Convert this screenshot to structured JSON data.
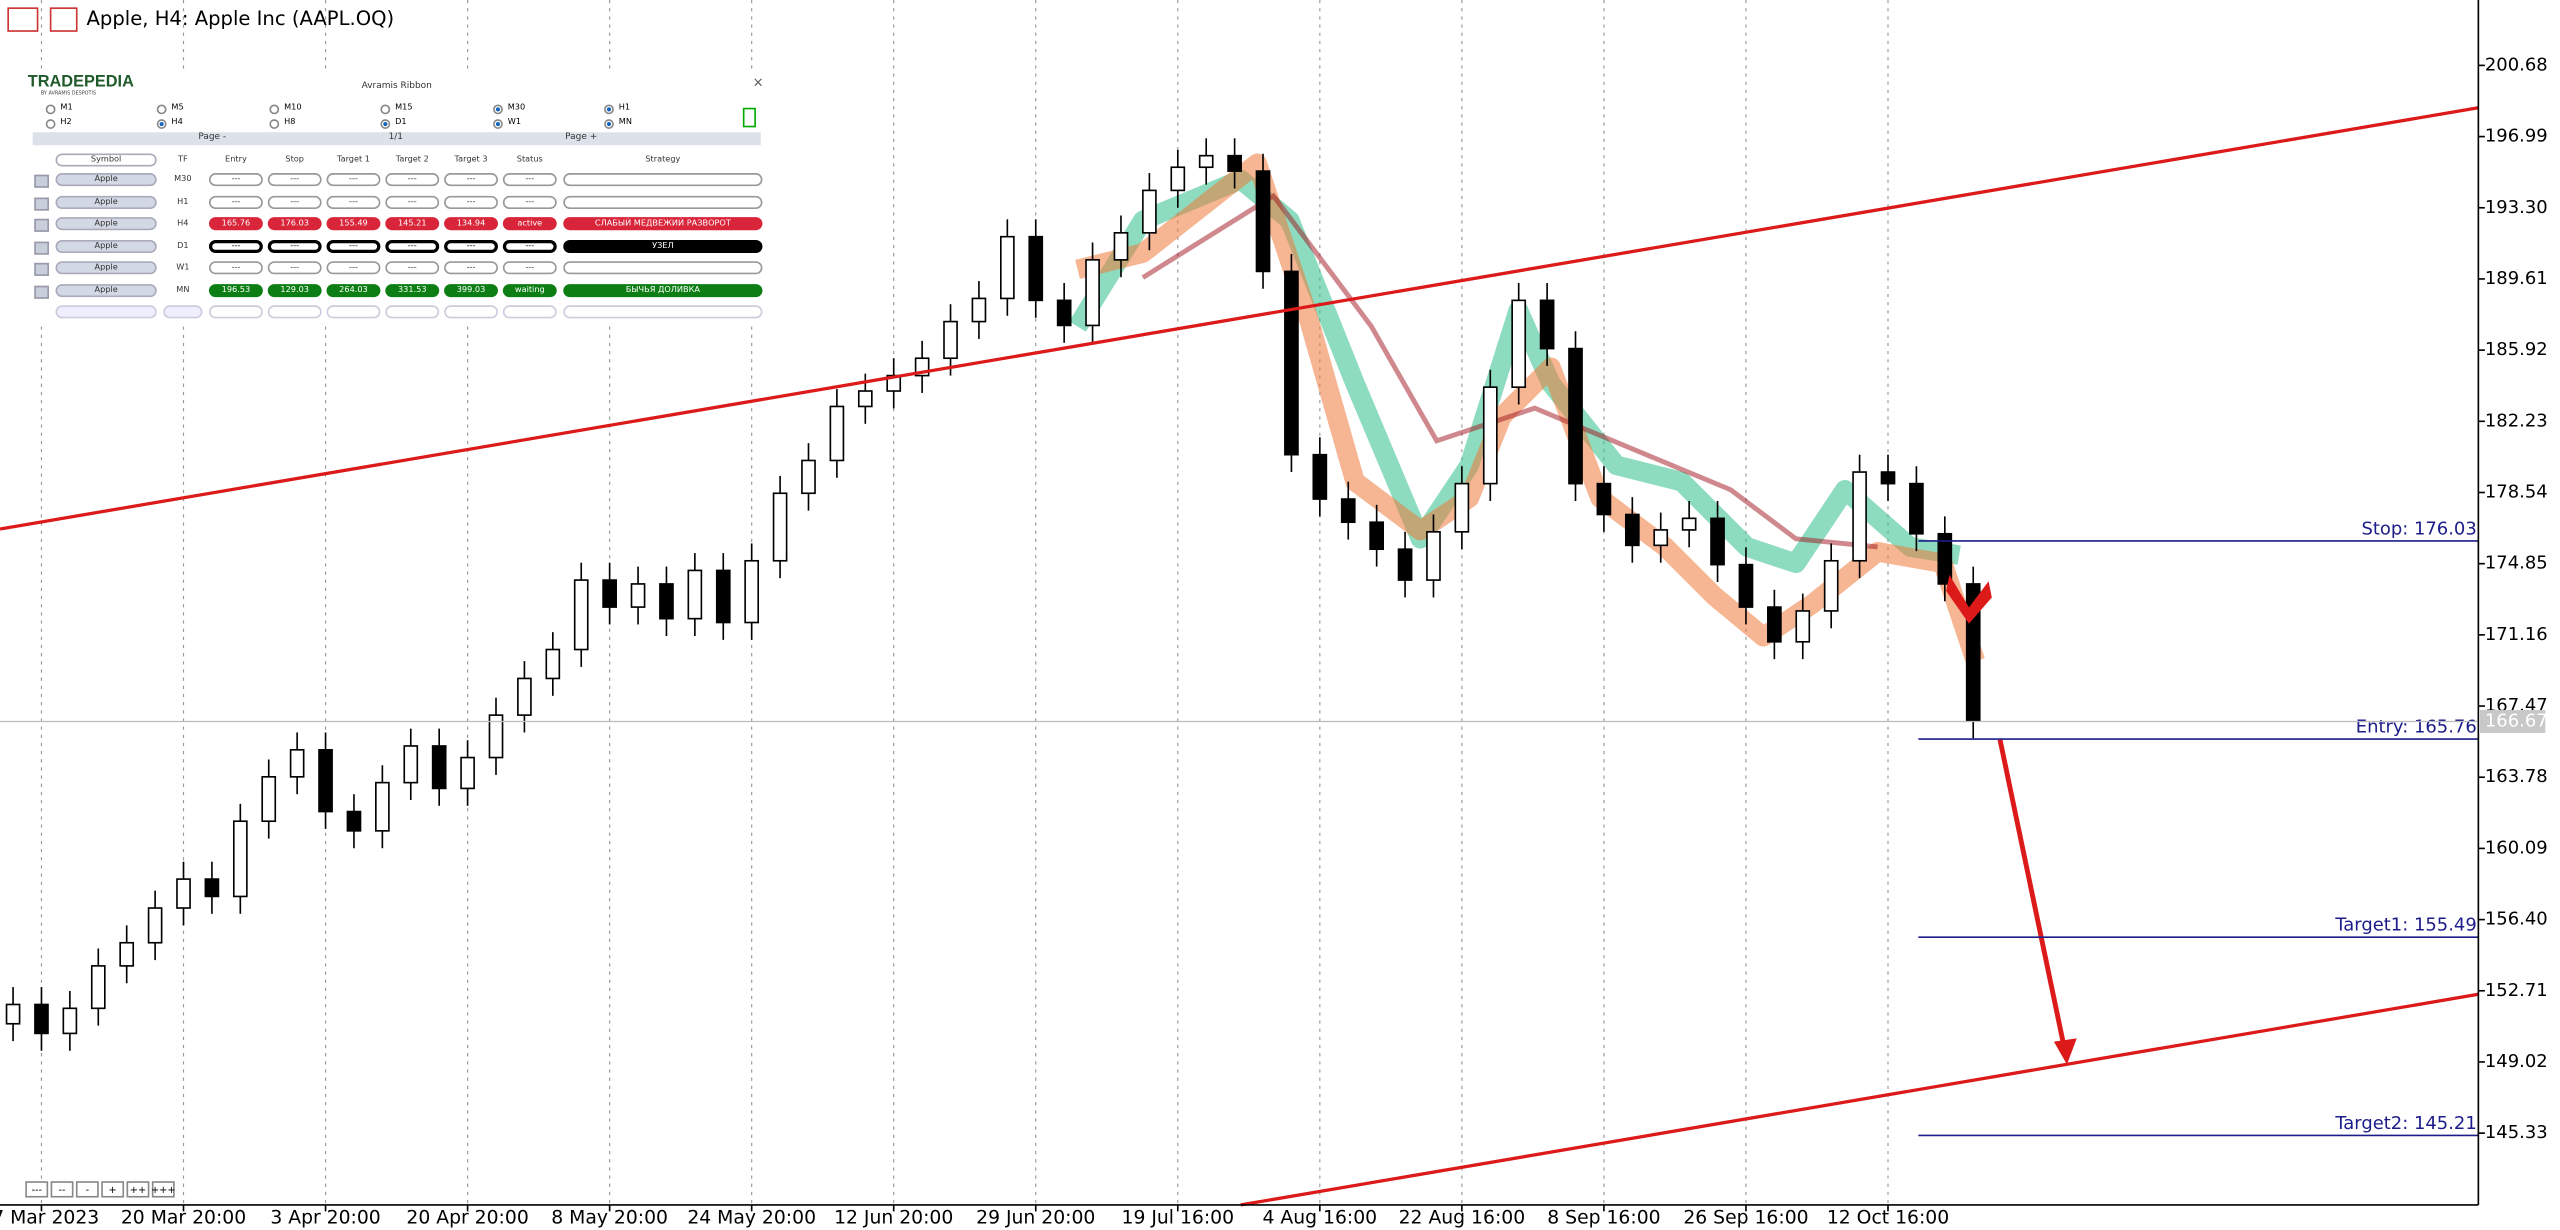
{
  "window": {
    "title": "Apple, H4:  Apple Inc (AAPL.OQ)"
  },
  "panel": {
    "brand": "TRADEPEDIA",
    "brand_sub": "BY AVRAMIS DESPOTIS",
    "title": "Avramis Ribbon",
    "close": "×",
    "timeframes": [
      {
        "label": "M1",
        "checked": false
      },
      {
        "label": "M5",
        "checked": false
      },
      {
        "label": "M10",
        "checked": false
      },
      {
        "label": "M15",
        "checked": false
      },
      {
        "label": "M30",
        "checked": true
      },
      {
        "label": "H1",
        "checked": true
      },
      {
        "label": "H2",
        "checked": false
      },
      {
        "label": "H4",
        "checked": true
      },
      {
        "label": "H8",
        "checked": false
      },
      {
        "label": "D1",
        "checked": true
      },
      {
        "label": "W1",
        "checked": true
      },
      {
        "label": "MN",
        "checked": true
      }
    ],
    "pager": {
      "prev": "Page -",
      "page": "1/1",
      "next": "Page +"
    },
    "columns": [
      "Symbol",
      "TF",
      "Entry",
      "Stop",
      "Target 1",
      "Target 2",
      "Target 3",
      "Status",
      "Strategy"
    ],
    "rows": [
      {
        "style": "plain",
        "cells": [
          "Apple",
          "M30",
          "---",
          "---",
          "---",
          "---",
          "---",
          "---",
          null
        ]
      },
      {
        "style": "plain",
        "cells": [
          "Apple",
          "H1",
          "---",
          "---",
          "---",
          "---",
          "---",
          "---",
          null
        ]
      },
      {
        "style": "red",
        "cells": [
          "Apple",
          "H4",
          "165.76",
          "176.03",
          "155.49",
          "145.21",
          "134.94",
          "active",
          "СЛАБЫЙ МЕДВЕЖИЙ РАЗВОРОТ"
        ]
      },
      {
        "style": "black",
        "cells": [
          "Apple",
          "D1",
          "---",
          "---",
          "---",
          "---",
          "---",
          "---",
          "УЗЕЛ"
        ]
      },
      {
        "style": "plain",
        "cells": [
          "Apple",
          "W1",
          "---",
          "---",
          "---",
          "---",
          "---",
          "---",
          null
        ]
      },
      {
        "style": "green",
        "cells": [
          "Apple",
          "MN",
          "196.53",
          "129.03",
          "264.03",
          "331.53",
          "399.03",
          "waiting",
          "БЫЧЬЯ ДОЛИВКА"
        ]
      }
    ]
  },
  "zoom_buttons": [
    "---",
    "--",
    "-",
    "+",
    "++",
    "+++"
  ],
  "chart_data": {
    "type": "candlestick",
    "categories": [
      null,
      "7 Mar 2023",
      null,
      null,
      null,
      null,
      "20 Mar 20:00",
      null,
      null,
      null,
      null,
      "3 Apr 20:00",
      null,
      null,
      null,
      null,
      "20 Apr 20:00",
      null,
      null,
      null,
      null,
      "8 May 20:00",
      null,
      null,
      null,
      null,
      "24 May 20:00",
      null,
      null,
      null,
      null,
      "12 Jun 20:00",
      null,
      null,
      null,
      null,
      "29 Jun 20:00",
      null,
      null,
      null,
      null,
      "19 Jul 16:00",
      null,
      null,
      null,
      null,
      "4 Aug 16:00",
      null,
      null,
      null,
      null,
      "22 Aug 16:00",
      null,
      null,
      null,
      null,
      "8 Sep 16:00",
      null,
      null,
      null,
      null,
      "26 Sep 16:00",
      null,
      null,
      null,
      null,
      "12 Oct 16:00",
      null,
      null,
      null
    ],
    "open": [
      151.0,
      152.0,
      150.5,
      151.8,
      154.0,
      155.2,
      157.0,
      158.5,
      157.6,
      161.5,
      163.8,
      165.2,
      162.0,
      161.0,
      163.5,
      165.4,
      163.2,
      164.8,
      167.0,
      168.9,
      170.4,
      174.0,
      172.6,
      173.8,
      172.0,
      174.5,
      171.8,
      175.0,
      178.5,
      180.2,
      183.0,
      183.8,
      184.6,
      185.5,
      187.4,
      188.6,
      191.8,
      188.5,
      187.2,
      190.6,
      192.0,
      194.2,
      195.4,
      196.0,
      195.2,
      190.0,
      180.5,
      178.2,
      177.0,
      175.6,
      174.0,
      176.5,
      179.0,
      184.0,
      188.5,
      186.0,
      179.0,
      177.4,
      175.8,
      176.6,
      177.2,
      174.8,
      172.6,
      170.8,
      172.4,
      175.0,
      179.6,
      179.0,
      176.4,
      173.8
    ],
    "high": [
      152.9,
      152.9,
      152.7,
      154.9,
      156.1,
      157.9,
      159.4,
      159.4,
      162.4,
      164.7,
      166.1,
      166.1,
      162.9,
      164.4,
      166.3,
      166.3,
      165.7,
      167.9,
      169.8,
      171.3,
      174.9,
      174.9,
      174.7,
      174.7,
      175.4,
      175.4,
      175.9,
      179.4,
      181.1,
      183.9,
      184.7,
      185.5,
      186.4,
      188.3,
      189.5,
      192.7,
      192.7,
      189.4,
      191.5,
      192.9,
      195.1,
      196.3,
      196.9,
      196.9,
      196.1,
      190.9,
      181.4,
      179.1,
      177.9,
      176.5,
      177.4,
      179.9,
      184.9,
      189.4,
      189.4,
      186.9,
      179.9,
      178.3,
      177.5,
      178.1,
      178.1,
      175.7,
      173.5,
      173.3,
      175.9,
      180.5,
      180.5,
      179.9,
      177.3,
      174.7
    ],
    "low": [
      150.1,
      149.6,
      149.6,
      150.9,
      153.1,
      154.3,
      156.1,
      156.7,
      156.7,
      160.6,
      162.9,
      161.1,
      160.1,
      160.1,
      162.6,
      162.3,
      162.3,
      163.9,
      166.1,
      168.0,
      169.5,
      171.7,
      171.7,
      171.1,
      171.1,
      170.9,
      170.9,
      174.1,
      177.6,
      179.3,
      182.1,
      182.9,
      183.7,
      184.6,
      186.5,
      187.7,
      187.6,
      186.3,
      186.3,
      189.7,
      191.1,
      193.3,
      194.5,
      194.3,
      189.1,
      179.6,
      177.3,
      176.1,
      174.7,
      173.1,
      173.1,
      175.6,
      178.1,
      183.1,
      185.1,
      178.1,
      176.5,
      174.9,
      174.9,
      175.7,
      173.9,
      171.7,
      169.9,
      169.9,
      171.5,
      174.1,
      178.1,
      175.5,
      172.9,
      165.8
    ],
    "close": [
      152.0,
      150.5,
      151.8,
      154.0,
      155.2,
      157.0,
      158.5,
      157.6,
      161.5,
      163.8,
      165.2,
      162.0,
      161.0,
      163.5,
      165.4,
      163.2,
      164.8,
      167.0,
      168.9,
      170.4,
      174.0,
      172.6,
      173.8,
      172.0,
      174.5,
      171.8,
      175.0,
      178.5,
      180.2,
      183.0,
      183.8,
      184.6,
      185.5,
      187.4,
      188.6,
      191.8,
      188.5,
      187.2,
      190.6,
      192.0,
      194.2,
      195.4,
      196.0,
      195.2,
      190.0,
      180.5,
      178.2,
      177.0,
      175.6,
      174.0,
      176.5,
      179.0,
      184.0,
      188.5,
      186.0,
      179.0,
      177.4,
      175.8,
      176.6,
      177.2,
      174.8,
      172.6,
      170.8,
      172.4,
      175.0,
      179.6,
      179.0,
      176.4,
      173.8,
      166.7
    ],
    "up_color": "#ffffff",
    "down_color": "#000000",
    "ylim": [
      141.61,
      204.07
    ],
    "yticks": [
      {
        "value": 200.68,
        "label": "200.68"
      },
      {
        "value": 196.99,
        "label": "196.99"
      },
      {
        "value": 193.3,
        "label": "193.30"
      },
      {
        "value": 189.61,
        "label": "189.61"
      },
      {
        "value": 185.92,
        "label": "185.92"
      },
      {
        "value": 182.23,
        "label": "182.23"
      },
      {
        "value": 178.54,
        "label": "178.54"
      },
      {
        "value": 174.85,
        "label": "174.85"
      },
      {
        "value": 171.16,
        "label": "171.16"
      },
      {
        "value": 167.47,
        "label": "167.47"
      },
      {
        "value": 163.78,
        "label": "163.78"
      },
      {
        "value": 160.09,
        "label": "160.09"
      },
      {
        "value": 156.4,
        "label": "156.40"
      },
      {
        "value": 152.71,
        "label": "152.71"
      },
      {
        "value": 149.02,
        "label": "149.02"
      },
      {
        "value": 145.33,
        "label": "145.33"
      }
    ],
    "grid": true,
    "levels": [
      {
        "value": 176.03,
        "label": "Stop: 176.03"
      },
      {
        "value": 165.76,
        "label": "Entry: 165.76"
      },
      {
        "value": 155.49,
        "label": "Target1: 155.49"
      },
      {
        "value": 145.21,
        "label": "Target2: 145.21"
      }
    ],
    "level_color": "#1c1c8a",
    "current_price": 166.67
  }
}
